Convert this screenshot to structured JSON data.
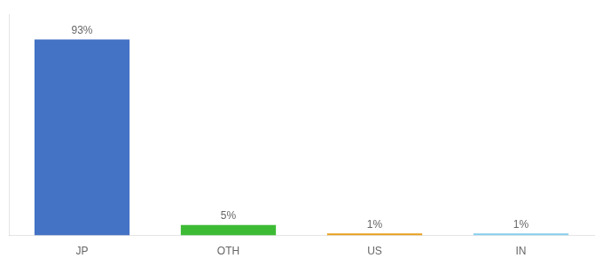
{
  "chart_data": {
    "type": "bar",
    "categories": [
      "JP",
      "OTH",
      "US",
      "IN"
    ],
    "values": [
      93,
      5,
      1,
      1
    ],
    "colors": [
      "#4472c4",
      "#3dbb35",
      "#e8a020",
      "#87ceeb"
    ],
    "value_labels": [
      "93%",
      "5%",
      "1%",
      "1%"
    ],
    "data_labels": true,
    "ylim": [
      0,
      105
    ],
    "grid": false,
    "tick_labels": "x"
  }
}
